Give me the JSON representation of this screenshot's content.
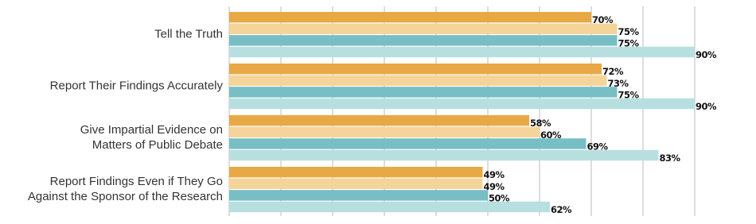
{
  "chart_data": {
    "type": "bar",
    "orientation": "horizontal",
    "categories": [
      "Tell the Truth",
      "Report Their Findings Accurately",
      "Give Impartial Evidence on\nMatters of Public Debate",
      "Report Findings Even if They Go\nAgainst the Sponsor of the Research"
    ],
    "series": [
      {
        "color": "#e8a945",
        "values": [
          70,
          72,
          58,
          49
        ],
        "value_labels": [
          "70%",
          "72%",
          "58%",
          "49%"
        ]
      },
      {
        "color": "#f5d49a",
        "values": [
          75,
          73,
          60,
          49
        ],
        "value_labels": [
          "75%",
          "73%",
          "60%",
          "49%"
        ]
      },
      {
        "color": "#77bfc4",
        "values": [
          75,
          75,
          69,
          50
        ],
        "value_labels": [
          "75%",
          "75%",
          "69%",
          "50%"
        ]
      },
      {
        "color": "#b8dfe0",
        "values": [
          90,
          90,
          83,
          62
        ],
        "value_labels": [
          "90%",
          "90%",
          "83%",
          "62%"
        ]
      }
    ],
    "xlim": [
      0,
      100
    ],
    "xticks": [
      0,
      10,
      20,
      30,
      40,
      50,
      60,
      70,
      80,
      90
    ],
    "grid": true
  }
}
